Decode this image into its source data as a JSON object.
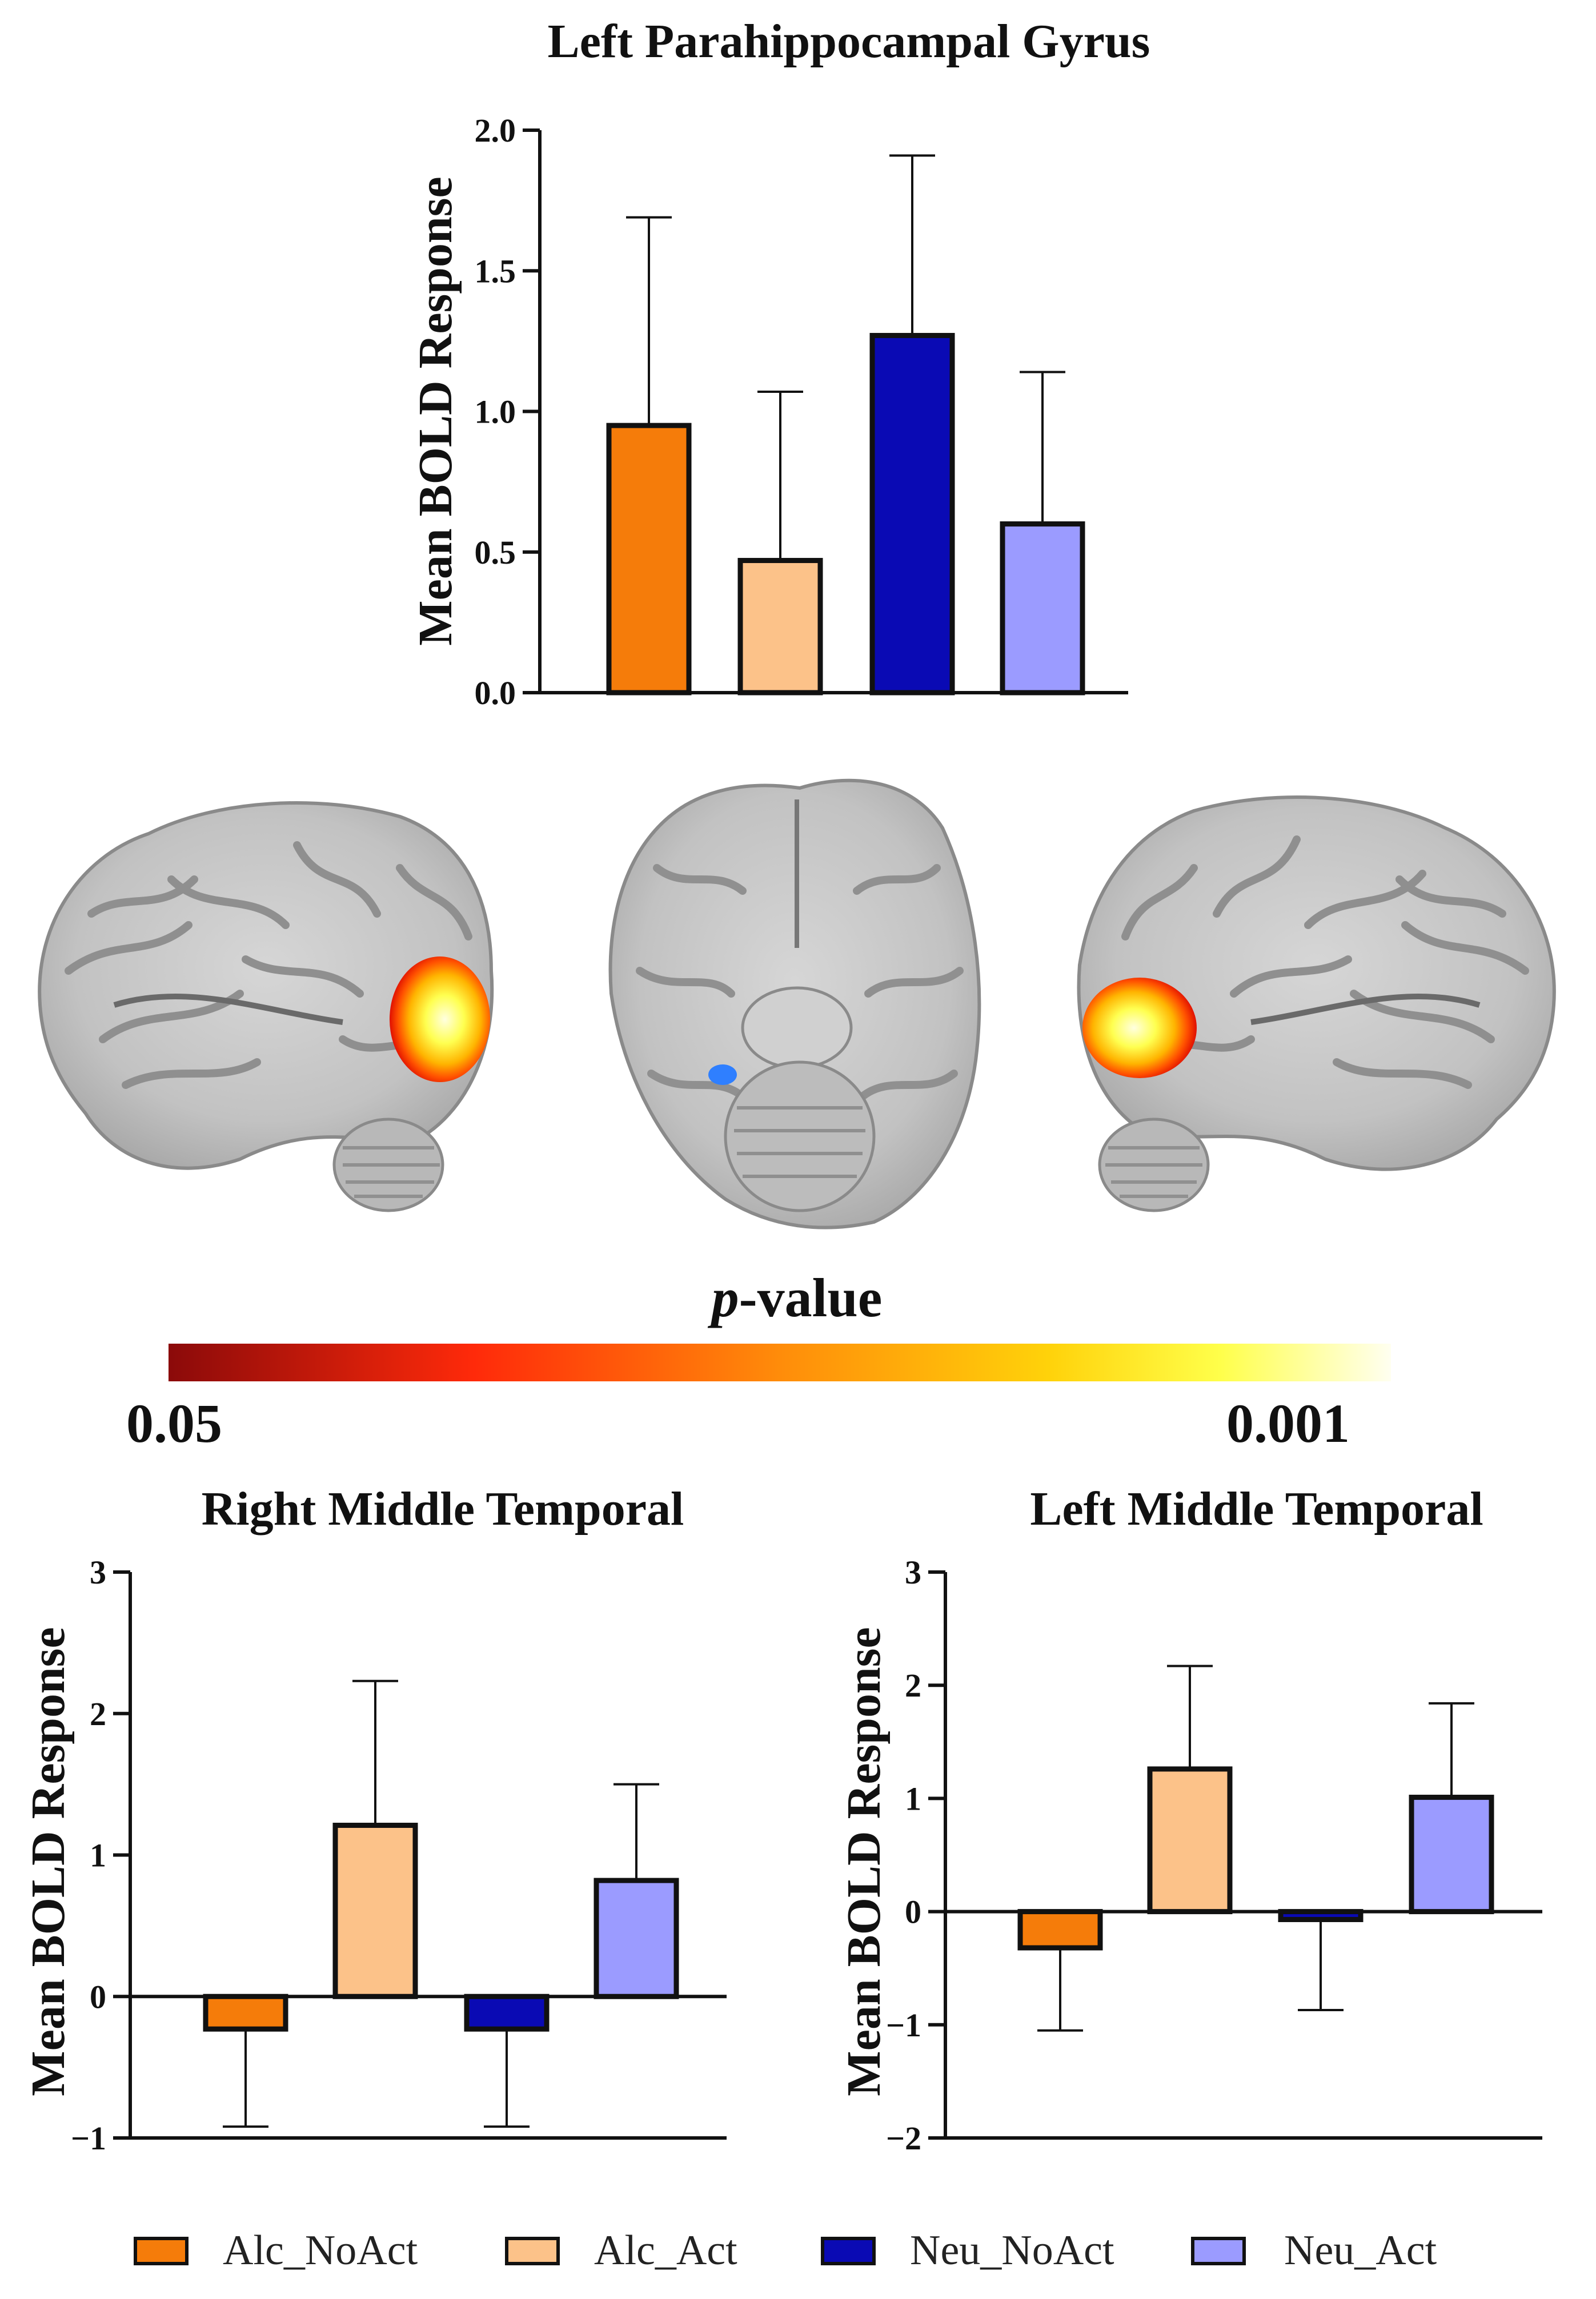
{
  "chart_data": [
    {
      "type": "bar",
      "title": "Left Parahippocampal Gyrus",
      "ylabel": "Mean BOLD Response",
      "xlabel": "",
      "categories": [
        "Alc_NoAct",
        "Alc_Act",
        "Neu_NoAct",
        "Neu_Act"
      ],
      "values": [
        0.95,
        0.47,
        1.27,
        0.6
      ],
      "errors": [
        0.74,
        0.6,
        0.64,
        0.54
      ],
      "ylim": [
        0,
        2.0
      ],
      "yticks": [
        "0.0",
        "0.5",
        "1.0",
        "1.5",
        "2.0"
      ],
      "ytick_values": [
        0,
        0.5,
        1.0,
        1.5,
        2.0
      ],
      "grid": false
    },
    {
      "type": "bar",
      "title": "Right Middle Temporal",
      "ylabel": "Mean BOLD Response",
      "xlabel": "",
      "categories": [
        "Alc_NoAct",
        "Alc_Act",
        "Neu_NoAct",
        "Neu_Act"
      ],
      "values": [
        -0.23,
        1.21,
        -0.23,
        0.82
      ],
      "errors": [
        0.69,
        1.02,
        0.69,
        0.68
      ],
      "ylim": [
        -1,
        3
      ],
      "yticks": [
        "−1",
        "0",
        "1",
        "2",
        "3"
      ],
      "ytick_values": [
        -1,
        0,
        1,
        2,
        3
      ],
      "grid": false
    },
    {
      "type": "bar",
      "title": "Left Middle Temporal",
      "ylabel": "Mean BOLD Response",
      "xlabel": "",
      "categories": [
        "Alc_NoAct",
        "Alc_Act",
        "Neu_NoAct",
        "Neu_Act"
      ],
      "values": [
        -0.32,
        1.26,
        -0.07,
        1.01
      ],
      "errors": [
        0.73,
        0.91,
        0.8,
        0.83
      ],
      "ylim": [
        -2,
        3
      ],
      "yticks": [
        "−2",
        "−1",
        "0",
        "1",
        "2",
        "3"
      ],
      "ytick_values": [
        -2,
        -1,
        0,
        1,
        2,
        3
      ],
      "grid": false
    }
  ],
  "colors": {
    "Alc_NoAct": "#f57c0a",
    "Alc_Act": "#fcc289",
    "Neu_NoAct": "#0a0ab4",
    "Neu_Act": "#9b9bff",
    "activation_warm": "#ffd21e",
    "activation_cool": "#2f7fff"
  },
  "legend": {
    "items": [
      "Alc_NoAct",
      "Alc_Act",
      "Neu_NoAct",
      "Neu_Act"
    ],
    "placement": "bottom"
  },
  "colorbar": {
    "title_italic": "p",
    "title_rest": "-value",
    "low_label": "0.05",
    "high_label": "0.001",
    "gradient_stops": [
      "#8b0a0a",
      "#ff2a0a",
      "#ff8c0a",
      "#ffd20a",
      "#ffff4a",
      "#fffff0"
    ]
  },
  "brain_views": [
    "left-sagittal-view",
    "axial-view",
    "right-sagittal-view"
  ]
}
